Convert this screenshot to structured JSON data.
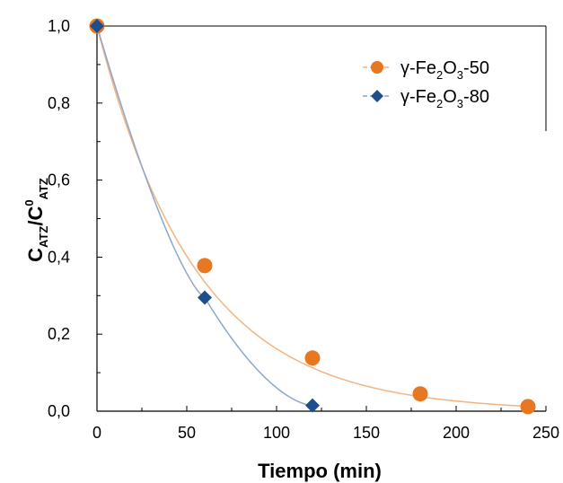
{
  "chart_data": {
    "type": "scatter",
    "xlabel": "Tiempo (min)",
    "ylabel": {
      "base": "C",
      "sub": "ATZ",
      "divider": "/",
      "base2": "C",
      "sup2": "0",
      "sub2": "ATZ"
    },
    "xlim": [
      0,
      250
    ],
    "ylim": [
      0.0,
      1.0
    ],
    "xticks": [
      "0",
      "50",
      "100",
      "150",
      "200",
      "250"
    ],
    "yticks": [
      "0,0",
      "0,2",
      "0,4",
      "0,6",
      "0,8",
      "1,0"
    ],
    "grid": false,
    "legend_position": "top-right",
    "series": [
      {
        "name": "γ-Fe2O3-50",
        "legend_parts": [
          "γ-Fe",
          "2",
          "O",
          "3",
          "-50"
        ],
        "marker": "circle",
        "color": "#E87722",
        "line_color": "#F2B480",
        "x": [
          0,
          60,
          120,
          180,
          240
        ],
        "y": [
          1.0,
          0.378,
          0.138,
          0.045,
          0.012
        ],
        "curve_decay_k": 0.0182
      },
      {
        "name": "γ-Fe2O3-80",
        "legend_parts": [
          "γ-Fe",
          "2",
          "O",
          "3",
          "-80"
        ],
        "marker": "diamond",
        "color": "#1F4E8C",
        "line_color": "#8FA7C8",
        "x": [
          0,
          60,
          120
        ],
        "y": [
          1.0,
          0.295,
          0.015
        ]
      }
    ]
  }
}
